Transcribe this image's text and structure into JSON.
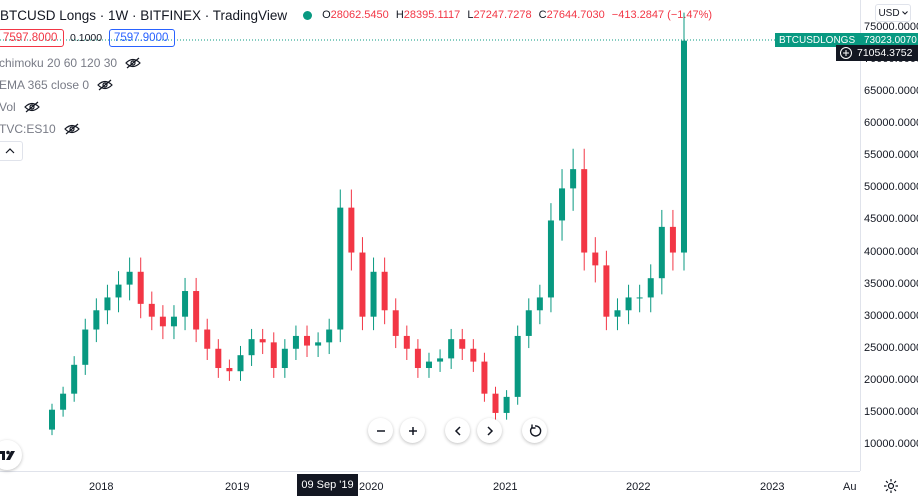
{
  "legend": {
    "symbol": "BTCUSD Longs · 1W · BITFINEX · TradingView",
    "ohlc": [
      {
        "k": "O",
        "v": "28062.5450"
      },
      {
        "k": "H",
        "v": "28395.1117"
      },
      {
        "k": "L",
        "v": "27247.7278"
      },
      {
        "k": "C",
        "v": "27644.7030"
      },
      {
        "k": "",
        "v": "−413.2847 (−1.47%)"
      }
    ]
  },
  "trade": {
    "sell": "7597.8000",
    "spread": "0.1000",
    "buy": "7597.9000"
  },
  "indicators": [
    {
      "label": "chimoku 20 60 120 30"
    },
    {
      "label": "EMA 365 close 0"
    },
    {
      "label": "Vol"
    },
    {
      "label": "TVC:ES10"
    }
  ],
  "price_axis": {
    "currency": "USD",
    "ticks": [
      "75000.0000",
      "70000.0000",
      "65000.0000",
      "60000.0000",
      "55000.0000",
      "50000.0000",
      "45000.0000",
      "40000.0000",
      "35000.0000",
      "30000.0000",
      "25000.0000",
      "20000.0000",
      "15000.0000",
      "10000.0000"
    ],
    "last_label_name": "BTCUSDLONGS",
    "last_label_value": "73023.0070",
    "crosshair_value": "71054.3752"
  },
  "time_axis": {
    "ticks": [
      "2018",
      "2019",
      "2020",
      "2021",
      "2022",
      "2023",
      "Au"
    ],
    "crosshair_date": "09 Sep '19"
  },
  "colors": {
    "up": "#089981",
    "down": "#f23645",
    "crosshair": "#089981"
  },
  "icons": {
    "zoom_out": "minus-icon",
    "zoom_in": "plus-icon",
    "scroll_left": "chevron-left-icon",
    "scroll_right": "chevron-right-icon",
    "reset": "reset-icon",
    "settings": "gear-icon",
    "logo": "tradingview-logo-icon"
  },
  "chart_data": {
    "type": "candlestick",
    "title": "BTCUSD Longs · 1W · BITFINEX",
    "ylim": [
      8000,
      77000
    ],
    "x": [
      "2017-08",
      "2017-09",
      "2017-10",
      "2017-11",
      "2017-12",
      "2018-01",
      "2018-02",
      "2018-03",
      "2018-04",
      "2018-05",
      "2018-06",
      "2018-07",
      "2018-08",
      "2018-09",
      "2018-10",
      "2018-11",
      "2018-12",
      "2019-01",
      "2019-02",
      "2019-03",
      "2019-04",
      "2019-05",
      "2019-06",
      "2019-07",
      "2019-08",
      "2019-09",
      "2019-10",
      "2019-11",
      "2019-12",
      "2020-01",
      "2020-02",
      "2020-03",
      "2020-04",
      "2020-05",
      "2020-06",
      "2020-07",
      "2020-08",
      "2020-09",
      "2020-10",
      "2020-11",
      "2020-12",
      "2021-01",
      "2021-02",
      "2021-03",
      "2021-04",
      "2021-05",
      "2021-06",
      "2021-07",
      "2021-08",
      "2021-09",
      "2021-10",
      "2021-11",
      "2021-12",
      "2022-01",
      "2022-02",
      "2022-03",
      "2022-04",
      "2022-05"
    ],
    "close": [
      15500,
      18000,
      22500,
      28000,
      31000,
      33000,
      35000,
      37000,
      32000,
      30000,
      28500,
      30000,
      34000,
      28000,
      25000,
      22000,
      21500,
      24000,
      26500,
      26000,
      22000,
      25000,
      27000,
      25500,
      26000,
      28000,
      47000,
      40000,
      30000,
      37000,
      31000,
      27000,
      25000,
      22000,
      23000,
      23500,
      26500,
      25000,
      23000,
      18000,
      15000,
      17500,
      27000,
      31000,
      33000,
      45000,
      50000,
      53000,
      40000,
      38000,
      30000,
      31000,
      33000,
      33000,
      36000,
      44000,
      40000,
      73023
    ]
  }
}
